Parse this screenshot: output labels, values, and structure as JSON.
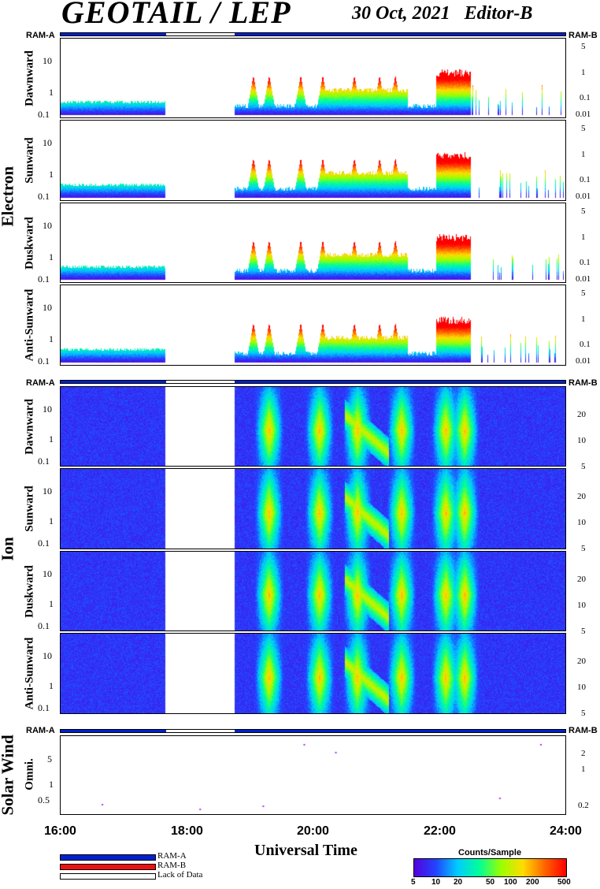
{
  "header": {
    "title": "GEOTAIL / LEP",
    "date_label": "30 Oct, 2021",
    "editor_label": "Editor-B"
  },
  "ram": {
    "left": "RAM-A",
    "right": "RAM-B"
  },
  "groups": {
    "electron": "Electron",
    "ion": "Ion",
    "solar_wind": "Solar Wind"
  },
  "panels": {
    "e1": "Dawnward",
    "e2": "Sunward",
    "e3": "Duskward",
    "e4": "Anti-Sunward",
    "i1": "Dawnward",
    "i2": "Sunward",
    "i3": "Duskward",
    "i4": "Anti-Sunward",
    "sw": "Omni."
  },
  "axes": {
    "energy_left": [
      "10",
      "1",
      "0.1"
    ],
    "electron_right": [
      "5",
      "1",
      "0.1",
      "0.01"
    ],
    "ion_right": [
      "20",
      "10",
      "5"
    ],
    "sw_left": [
      "5",
      "1",
      "0.5"
    ],
    "sw_right": [
      "2",
      "1",
      "0.2"
    ]
  },
  "chart_data": {
    "type": "heatmap",
    "title": "GEOTAIL / LEP",
    "xlabel": "Universal Time",
    "x_ticks": [
      "16:00",
      "18:00",
      "20:00",
      "22:00",
      "24:00"
    ],
    "x_range_hours": [
      16,
      24
    ],
    "data_gaps_hours": [
      [
        17.65,
        18.75
      ]
    ],
    "colorbar": {
      "title": "Counts/Sample",
      "ticks": [
        "5",
        "10",
        "20",
        "50",
        "100",
        "200",
        "500"
      ],
      "colors": [
        "#5500dd",
        "#2244ff",
        "#00ccff",
        "#00ff99",
        "#99ff00",
        "#ffdd00",
        "#ff6600",
        "#ff0000"
      ]
    },
    "electron_bursts_hours": [
      19.05,
      19.3,
      19.8,
      20.15,
      20.65,
      21.05,
      21.3,
      22.1,
      22.4
    ],
    "ion_bursts_hours": [
      19.3,
      20.1,
      20.7,
      21.4,
      22.1,
      22.4
    ]
  },
  "legend": {
    "ram_a": "RAM-A",
    "ram_b": "RAM-B",
    "lack": "Lack of Data",
    "colors": {
      "ram_a": "#0022cc",
      "ram_b": "#ee1111",
      "lack": "#ffffff"
    }
  }
}
